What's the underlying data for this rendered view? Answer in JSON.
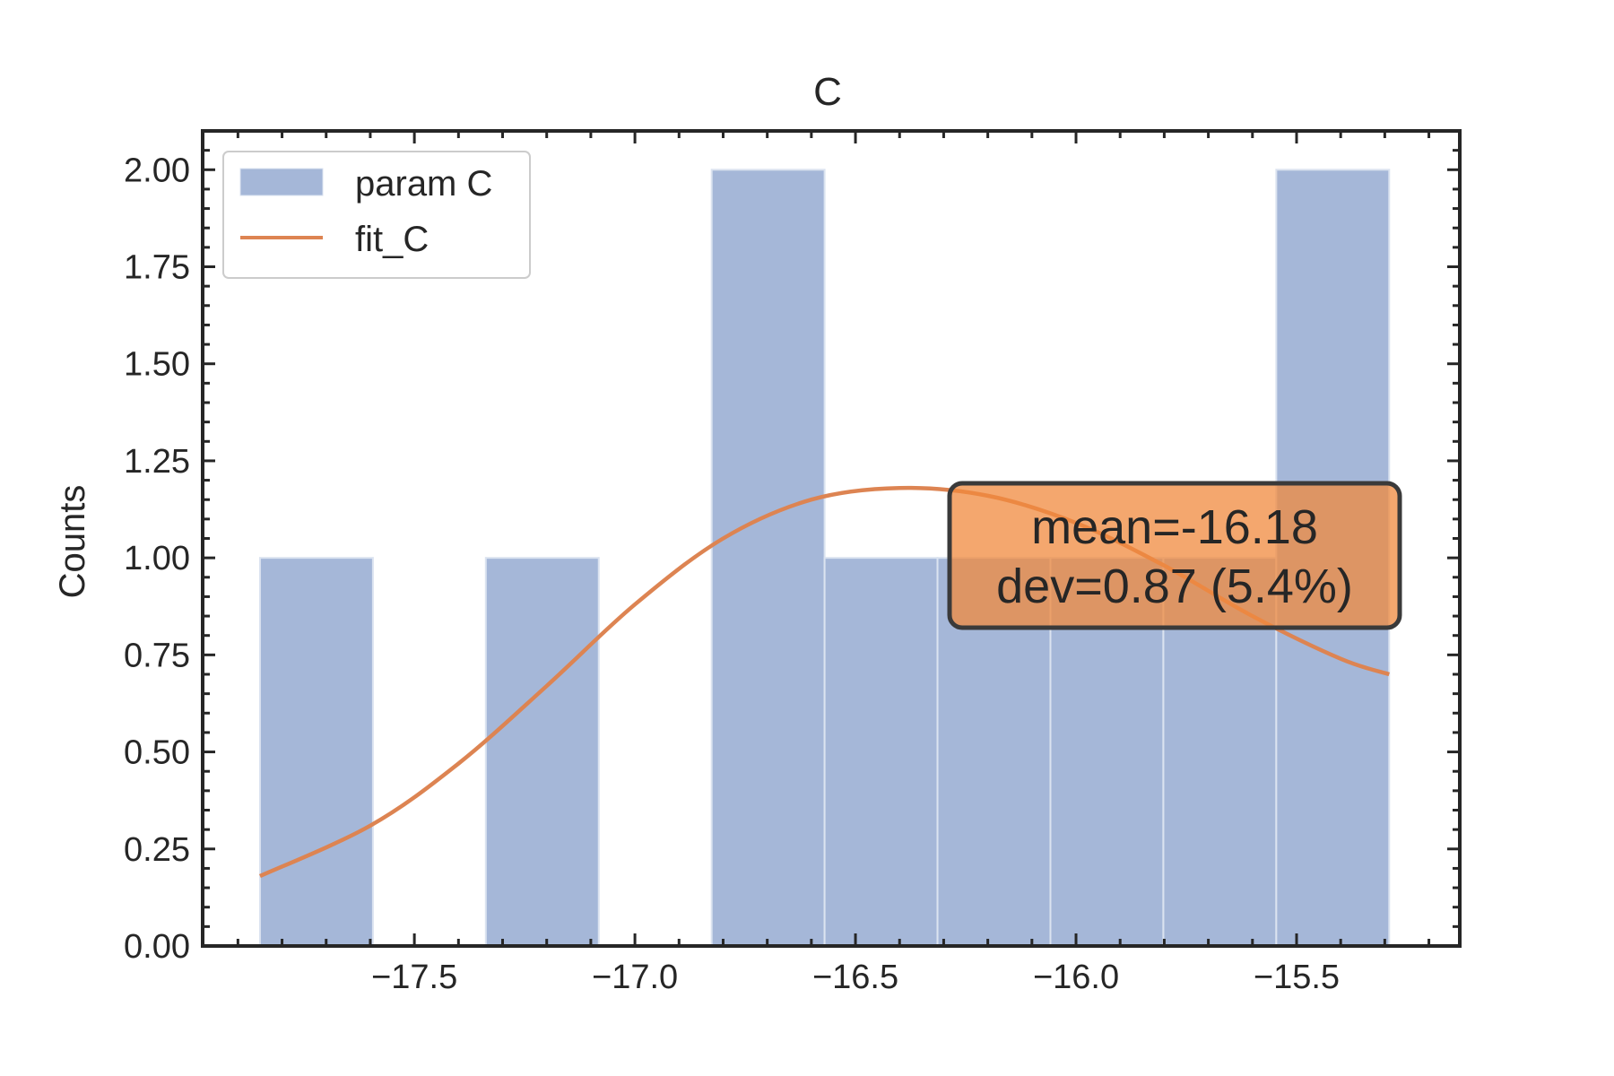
{
  "colors": {
    "bar_fill": "#a5b7d8",
    "bar_edge": "#dbe3f0",
    "fit_line": "#dd8452",
    "axis": "#262626",
    "stats_box_fill": "#f08a3e",
    "stats_box_edge": "#3a3a3a"
  },
  "chart_data": {
    "type": "bar",
    "title": "C",
    "xlabel": "",
    "ylabel": "Counts",
    "xlim": [
      -17.98,
      -15.13
    ],
    "ylim": [
      0,
      2.1
    ],
    "grid": false,
    "legend_placement": "top-left",
    "x_ticks": [
      -17.5,
      -17.0,
      -16.5,
      -16.0,
      -15.5
    ],
    "x_tick_labels": [
      "−17.5",
      "−17.0",
      "−16.5",
      "−16.0",
      "−15.5"
    ],
    "y_ticks": [
      0,
      0.25,
      0.5,
      0.75,
      1.0,
      1.25,
      1.5,
      1.75,
      2.0
    ],
    "y_tick_labels": [
      "0.00",
      "0.25",
      "0.50",
      "0.75",
      "1.00",
      "1.25",
      "1.50",
      "1.75",
      "2.00"
    ],
    "histogram": {
      "name": "param C",
      "bin_edges": [
        -17.85,
        -17.594,
        -17.338,
        -17.082,
        -16.826,
        -16.57,
        -16.314,
        -16.058,
        -15.802,
        -15.546,
        -15.29
      ],
      "counts": [
        1,
        0,
        1,
        0,
        2,
        1,
        1,
        1,
        1,
        2
      ]
    },
    "fit": {
      "name": "fit_C",
      "type": "line",
      "x": [
        -17.85,
        -17.6,
        -17.4,
        -17.2,
        -17.0,
        -16.8,
        -16.6,
        -16.4,
        -16.2,
        -16.0,
        -15.8,
        -15.6,
        -15.4,
        -15.29
      ],
      "y": [
        0.18,
        0.31,
        0.47,
        0.67,
        0.88,
        1.05,
        1.15,
        1.18,
        1.16,
        1.09,
        0.98,
        0.85,
        0.74,
        0.7
      ]
    },
    "annotation": {
      "line1": "mean=-16.18",
      "line2": "dev=0.87 (5.4%)"
    }
  }
}
